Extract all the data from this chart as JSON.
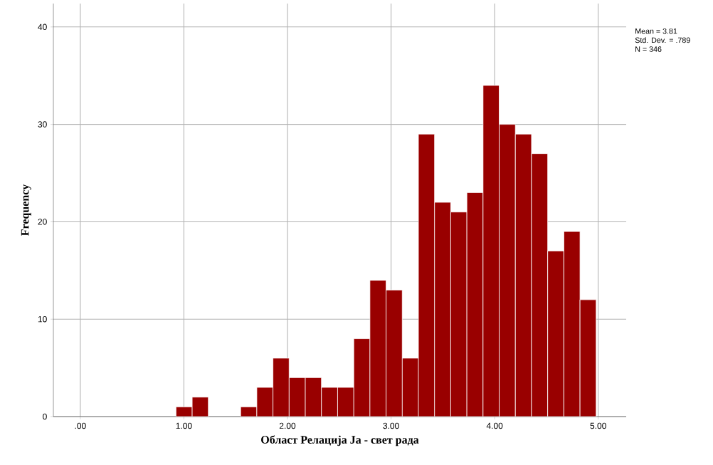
{
  "chart_data": {
    "type": "histogram",
    "xlabel": "Област Релација Ја - свет рада",
    "ylabel": "Frequency",
    "bins": [
      0.924,
      1.08,
      1.236,
      1.392,
      1.548,
      1.704,
      1.86,
      2.016,
      2.172,
      2.328,
      2.484,
      2.64,
      2.796,
      2.952,
      3.108,
      3.264,
      3.42,
      3.576,
      3.732,
      3.888,
      4.044,
      4.2,
      4.356,
      4.512,
      4.668,
      4.824,
      4.98
    ],
    "values": [
      1,
      2,
      0,
      0,
      1,
      3,
      6,
      4,
      4,
      3,
      3,
      8,
      14,
      13,
      6,
      29,
      22,
      21,
      23,
      34,
      30,
      29,
      27,
      17,
      19,
      12
    ],
    "color": "#990000",
    "xlim": [
      -0.26,
      5.27
    ],
    "ylim": [
      0,
      42.4
    ],
    "xticks": [
      {
        "value": 0,
        "label": ".00"
      },
      {
        "value": 1,
        "label": "1.00"
      },
      {
        "value": 2,
        "label": "2.00"
      },
      {
        "value": 3,
        "label": "3.00"
      },
      {
        "value": 4,
        "label": "4.00"
      },
      {
        "value": 5,
        "label": "5.00"
      }
    ],
    "yticks": [
      0,
      10,
      20,
      30,
      40
    ],
    "grid": true,
    "annotations": [
      "Mean = 3.81",
      "Std. Dev. = .789",
      "N = 346"
    ]
  }
}
